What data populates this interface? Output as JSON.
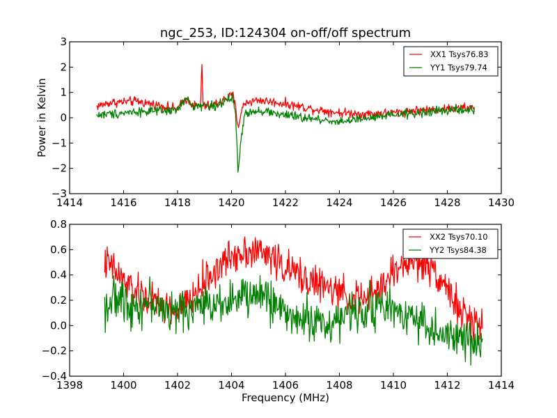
{
  "title": "ngc_253, ID:124304 on-off/off spectrum",
  "colors": {
    "xx": "#ff0000",
    "yy": "#008000",
    "axes": "#000000",
    "background": "#ffffff"
  },
  "chart_data": [
    {
      "type": "line",
      "title": "ngc_253, ID:124304 on-off/off spectrum",
      "xlabel": "",
      "ylabel": "Power in Kelvin",
      "xlim": [
        1414,
        1430
      ],
      "ylim": [
        -3,
        3
      ],
      "xticks": [
        "1414",
        "1416",
        "1418",
        "1420",
        "1422",
        "1424",
        "1426",
        "1428",
        "1430"
      ],
      "yticks": [
        "3",
        "2",
        "1",
        "0",
        "−1",
        "−2",
        "−3"
      ],
      "legend_position": "top-right",
      "grid": false,
      "series": [
        {
          "name": "XX1 Tsys76.83",
          "color": "#ff0000",
          "noise": 0.09,
          "x": [
            1415.0,
            1415.5,
            1416.5,
            1417.5,
            1418.0,
            1418.3,
            1418.6,
            1418.85,
            1418.9,
            1418.95,
            1419.3,
            1419.8,
            1420.05,
            1420.15,
            1420.25,
            1420.35,
            1420.5,
            1421.0,
            1422.0,
            1423.0,
            1424.0,
            1425.0,
            1426.0,
            1427.0,
            1428.0,
            1429.0
          ],
          "y": [
            0.45,
            0.6,
            0.65,
            0.45,
            0.35,
            0.75,
            0.5,
            0.45,
            2.1,
            0.45,
            0.5,
            0.75,
            0.9,
            0.4,
            -0.4,
            0.2,
            0.6,
            0.7,
            0.55,
            0.35,
            0.2,
            0.15,
            0.2,
            0.3,
            0.35,
            0.4
          ]
        },
        {
          "name": "YY1 Tsys79.74",
          "color": "#008000",
          "noise": 0.09,
          "x": [
            1415.0,
            1415.5,
            1416.5,
            1417.5,
            1418.0,
            1418.3,
            1418.6,
            1418.9,
            1419.3,
            1419.8,
            1420.05,
            1420.15,
            1420.25,
            1420.35,
            1420.5,
            1421.0,
            1422.0,
            1423.0,
            1424.0,
            1425.0,
            1426.0,
            1427.0,
            1428.0,
            1429.0
          ],
          "y": [
            0.1,
            0.15,
            0.25,
            0.25,
            0.3,
            0.75,
            0.45,
            0.5,
            0.45,
            0.65,
            0.8,
            0.1,
            -2.15,
            -0.9,
            0.2,
            0.3,
            0.1,
            -0.05,
            -0.15,
            -0.05,
            0.1,
            0.2,
            0.3,
            0.3
          ]
        }
      ]
    },
    {
      "type": "line",
      "title": "",
      "xlabel": "Frequency (MHz)",
      "ylabel": "",
      "xlim": [
        1398,
        1414
      ],
      "ylim": [
        -0.4,
        0.8
      ],
      "xticks": [
        "1398",
        "1400",
        "1402",
        "1404",
        "1406",
        "1408",
        "1410",
        "1412",
        "1414"
      ],
      "yticks": [
        "0.8",
        "0.6",
        "0.4",
        "0.2",
        "0.0",
        "−0.2",
        "−0.4"
      ],
      "legend_position": "top-right",
      "grid": false,
      "series": [
        {
          "name": "XX2 Tsys70.10",
          "color": "#ff0000",
          "noise": 0.07,
          "x": [
            1399.3,
            1399.6,
            1400.0,
            1400.5,
            1401.0,
            1401.5,
            1402.0,
            1402.5,
            1403.0,
            1403.5,
            1404.0,
            1404.5,
            1405.0,
            1405.5,
            1406.0,
            1406.5,
            1407.0,
            1407.5,
            1408.0,
            1408.5,
            1409.0,
            1409.5,
            1410.0,
            1410.5,
            1411.0,
            1411.5,
            1412.0,
            1412.5,
            1413.0,
            1413.3
          ],
          "y": [
            0.5,
            0.45,
            0.35,
            0.25,
            0.2,
            0.15,
            0.1,
            0.2,
            0.35,
            0.45,
            0.55,
            0.6,
            0.58,
            0.55,
            0.45,
            0.4,
            0.35,
            0.3,
            0.25,
            0.22,
            0.2,
            0.3,
            0.42,
            0.5,
            0.5,
            0.45,
            0.3,
            0.1,
            0.0,
            0.05
          ]
        },
        {
          "name": "YY2 Tsys84.38",
          "color": "#008000",
          "noise": 0.08,
          "x": [
            1399.3,
            1399.6,
            1400.0,
            1400.5,
            1401.0,
            1401.5,
            1402.0,
            1402.5,
            1403.0,
            1403.5,
            1404.0,
            1404.5,
            1405.0,
            1405.5,
            1406.0,
            1406.5,
            1407.0,
            1407.5,
            1408.0,
            1408.5,
            1409.0,
            1409.5,
            1410.0,
            1410.5,
            1411.0,
            1411.5,
            1412.0,
            1412.5,
            1413.0,
            1413.3
          ],
          "y": [
            0.15,
            0.2,
            0.2,
            0.15,
            0.2,
            0.12,
            0.1,
            0.15,
            0.15,
            0.2,
            0.2,
            0.22,
            0.25,
            0.2,
            0.1,
            0.05,
            0.05,
            0.0,
            0.05,
            0.1,
            0.15,
            0.15,
            0.12,
            0.1,
            0.05,
            -0.05,
            -0.1,
            -0.1,
            -0.15,
            -0.1
          ]
        }
      ]
    }
  ]
}
